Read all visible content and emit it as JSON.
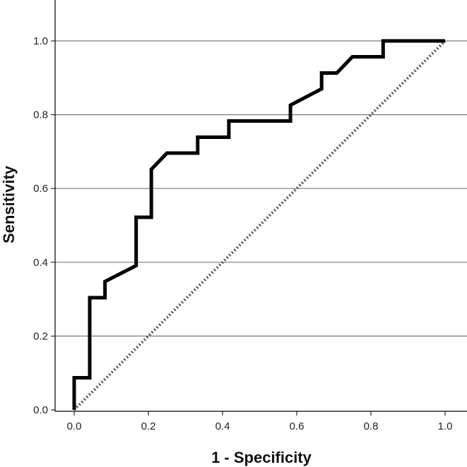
{
  "chart_data": {
    "type": "line",
    "title": "",
    "xlabel": "1 - Specificity",
    "ylabel": "Sensitivity",
    "xlim": [
      0,
      1
    ],
    "ylim": [
      0,
      1
    ],
    "xticks": [
      0.0,
      0.2,
      0.4,
      0.6,
      0.8,
      1.0
    ],
    "yticks": [
      0.0,
      0.2,
      0.4,
      0.6,
      0.8,
      1.0
    ],
    "xtick_labels": [
      "0.0",
      "0.2",
      "0.4",
      "0.6",
      "0.8",
      "1.0"
    ],
    "ytick_labels": [
      "0.0",
      "0.2",
      "0.4",
      "0.6",
      "0.8",
      "1.0"
    ],
    "grid": "horizontal",
    "legend": "none",
    "series": [
      {
        "style": "solid",
        "color": "#000000",
        "x": [
          0.0,
          0.0,
          0.042,
          0.042,
          0.083,
          0.083,
          0.167,
          0.167,
          0.208,
          0.208,
          0.25,
          0.333,
          0.333,
          0.417,
          0.417,
          0.583,
          0.583,
          0.667,
          0.667,
          0.708,
          0.75,
          0.833,
          0.833,
          1.0
        ],
        "y": [
          0.0,
          0.087,
          0.087,
          0.304,
          0.304,
          0.348,
          0.391,
          0.522,
          0.522,
          0.652,
          0.696,
          0.696,
          0.739,
          0.739,
          0.783,
          0.783,
          0.826,
          0.87,
          0.913,
          0.913,
          0.957,
          0.957,
          1.0,
          1.0
        ]
      },
      {
        "style": "dotted",
        "color": "#555555",
        "x": [
          0.0,
          1.0
        ],
        "y": [
          0.0,
          1.0
        ]
      }
    ]
  }
}
